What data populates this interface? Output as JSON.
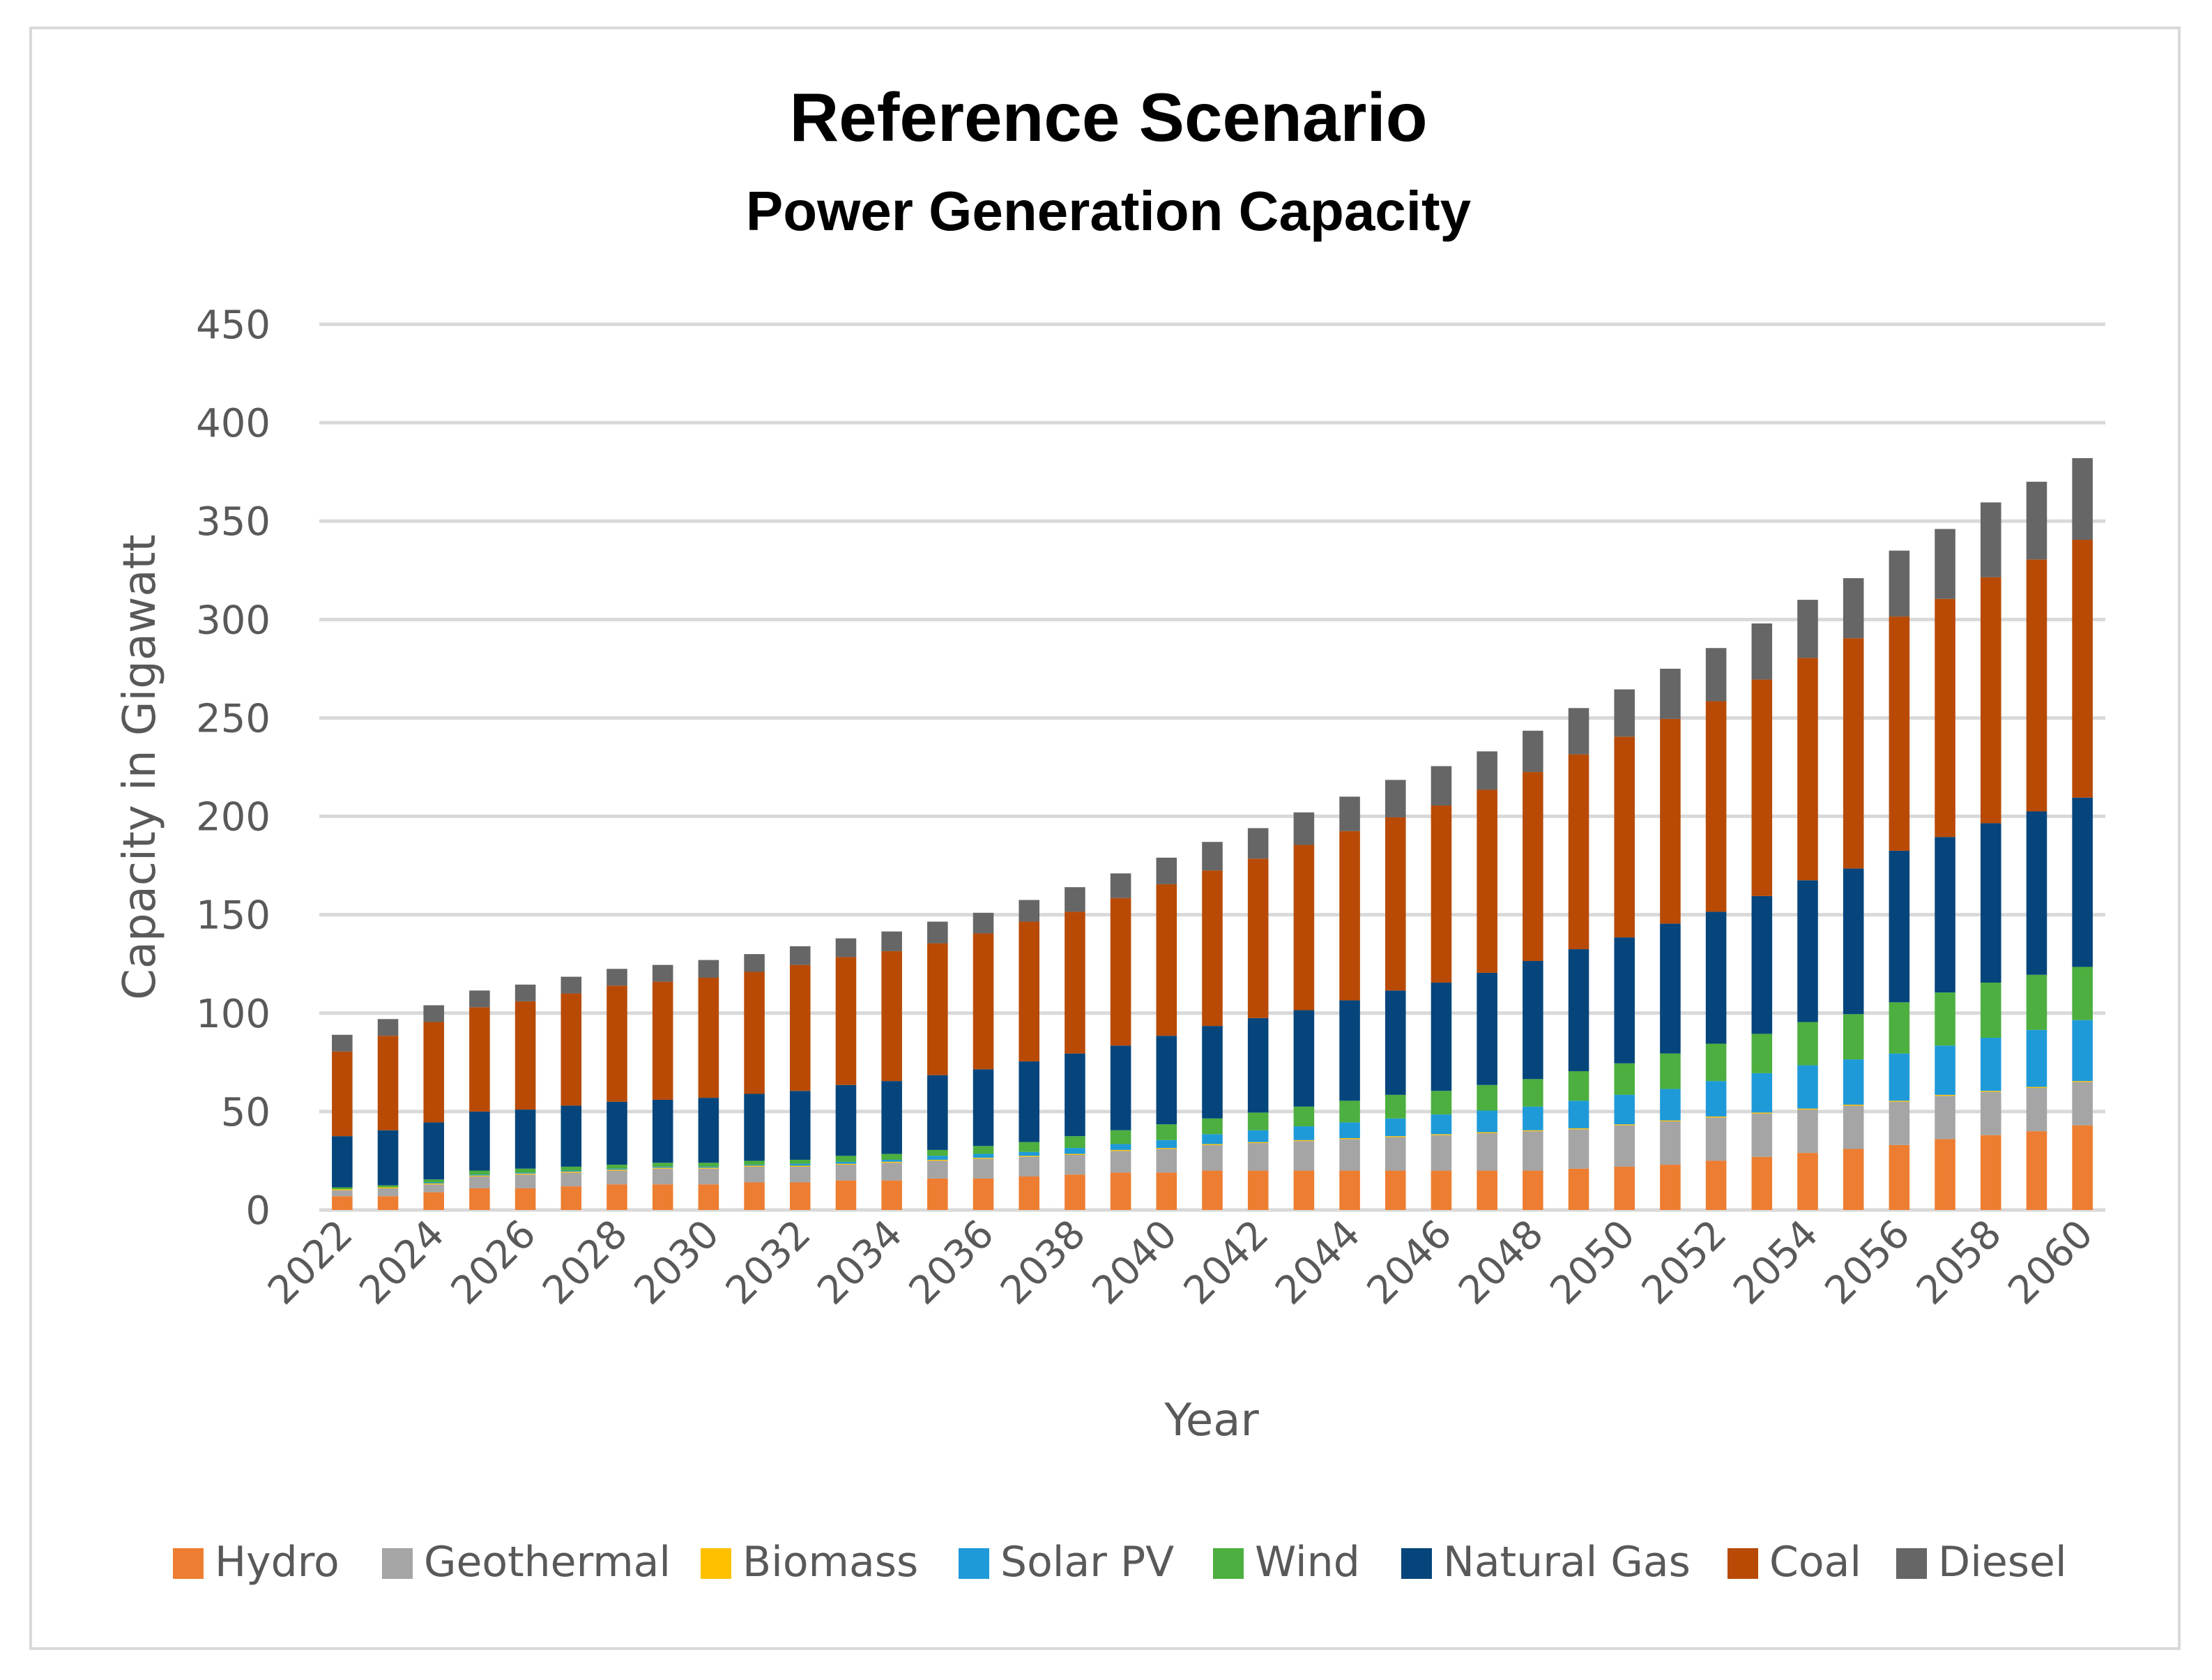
{
  "chart_data": {
    "type": "bar",
    "stacked": true,
    "title": "Reference Scenario",
    "subtitle": "Power Generation Capacity",
    "xlabel": "Year",
    "ylabel": "Capacity in Gigawatt",
    "ylim": [
      0,
      450
    ],
    "yticks": [
      "0",
      "50",
      "100",
      "150",
      "200",
      "250",
      "300",
      "350",
      "400",
      "450"
    ],
    "grid": true,
    "legend_position": "bottom",
    "categories": [
      "2022",
      "2023",
      "2024",
      "2025",
      "2026",
      "2027",
      "2028",
      "2029",
      "2030",
      "2031",
      "2032",
      "2033",
      "2034",
      "2035",
      "2036",
      "2037",
      "2038",
      "2039",
      "2040",
      "2041",
      "2042",
      "2043",
      "2044",
      "2045",
      "2046",
      "2047",
      "2048",
      "2049",
      "2050",
      "2051",
      "2052",
      "2053",
      "2054",
      "2055",
      "2056",
      "2057",
      "2058",
      "2059",
      "2060"
    ],
    "xtick_labels": [
      "2022",
      "2024",
      "2026",
      "2028",
      "2030",
      "2032",
      "2034",
      "2036",
      "2038",
      "2040",
      "2042",
      "2044",
      "2046",
      "2048",
      "2050",
      "2052",
      "2054",
      "2056",
      "2058",
      "2060"
    ],
    "series": [
      {
        "name": "Hydro",
        "color": "#ED7D31",
        "values": [
          7,
          7,
          9,
          11,
          11,
          12,
          13,
          13,
          13,
          14,
          14,
          15,
          15,
          16,
          16,
          17,
          18,
          19,
          19,
          20,
          20,
          20,
          20,
          20,
          20,
          20,
          20,
          21,
          22,
          23,
          25,
          27,
          29,
          31,
          33,
          36,
          38,
          40,
          43
        ]
      },
      {
        "name": "Geothermal",
        "color": "#A5A5A5",
        "values": [
          3,
          4,
          4,
          6,
          7,
          7,
          7,
          8,
          8,
          8,
          8,
          8,
          9,
          9,
          10,
          10,
          10,
          11,
          12,
          13,
          14,
          15,
          16,
          17,
          18,
          19,
          20,
          20,
          21,
          22,
          22,
          22,
          22,
          22,
          22,
          22,
          22,
          22,
          22
        ]
      },
      {
        "name": "Biomass",
        "color": "#FFC000",
        "values": [
          0.5,
          0.5,
          0.5,
          0.5,
          0.5,
          0.5,
          0.5,
          0.5,
          0.5,
          0.5,
          0.5,
          0.5,
          0.5,
          0.5,
          0.5,
          0.5,
          0.5,
          0.5,
          0.5,
          0.5,
          0.5,
          0.5,
          0.5,
          0.5,
          0.5,
          0.5,
          0.5,
          0.5,
          0.5,
          0.5,
          0.5,
          0.5,
          0.5,
          0.5,
          0.5,
          0.5,
          0.5,
          0.5,
          0.5
        ]
      },
      {
        "name": "Solar PV",
        "color": "#1F9AD9",
        "values": [
          0,
          0,
          0.5,
          0.5,
          0.5,
          0.5,
          0.5,
          0.5,
          0.5,
          0.5,
          1,
          1,
          1,
          2,
          2,
          2,
          3,
          3,
          4,
          5,
          6,
          7,
          8,
          9,
          10,
          11,
          12,
          14,
          15,
          16,
          18,
          20,
          22,
          23,
          24,
          25,
          27,
          29,
          31
        ]
      },
      {
        "name": "Wind",
        "color": "#4CAF3F",
        "values": [
          1,
          1,
          1.5,
          2,
          2,
          2,
          2,
          2,
          2,
          2,
          2,
          3,
          3,
          3,
          4,
          5,
          6,
          7,
          8,
          8,
          9,
          10,
          11,
          12,
          12,
          13,
          14,
          15,
          16,
          18,
          19,
          20,
          22,
          23,
          26,
          27,
          28,
          28,
          27
        ]
      },
      {
        "name": "Natural Gas",
        "color": "#05457C",
        "values": [
          26,
          28,
          29,
          30,
          30,
          31,
          32,
          32,
          33,
          34,
          35,
          36,
          37,
          38,
          39,
          41,
          42,
          43,
          45,
          47,
          48,
          49,
          51,
          53,
          55,
          57,
          60,
          62,
          64,
          66,
          67,
          70,
          72,
          74,
          77,
          79,
          81,
          83,
          86
        ]
      },
      {
        "name": "Coal",
        "color": "#B84A06",
        "values": [
          43,
          48,
          51,
          53,
          55,
          57,
          59,
          60,
          61,
          62,
          64,
          65,
          66,
          67,
          69,
          71,
          72,
          75,
          77,
          79,
          81,
          84,
          86,
          88,
          90,
          93,
          96,
          99,
          102,
          104,
          107,
          110,
          113,
          117,
          119,
          121,
          125,
          128,
          131
        ]
      },
      {
        "name": "Diesel",
        "color": "#666666",
        "values": [
          8.5,
          8.5,
          8.5,
          8.5,
          8.5,
          8.5,
          8.5,
          8.5,
          9,
          9,
          9.5,
          9.5,
          10,
          11,
          10.5,
          11,
          12.5,
          12.5,
          13.5,
          14.5,
          15.5,
          16.5,
          17.5,
          19,
          20,
          19.5,
          21,
          23.5,
          24,
          25.5,
          27,
          28.5,
          29.5,
          30.5,
          33.5,
          35.5,
          38,
          39.5,
          41.5
        ]
      }
    ]
  }
}
